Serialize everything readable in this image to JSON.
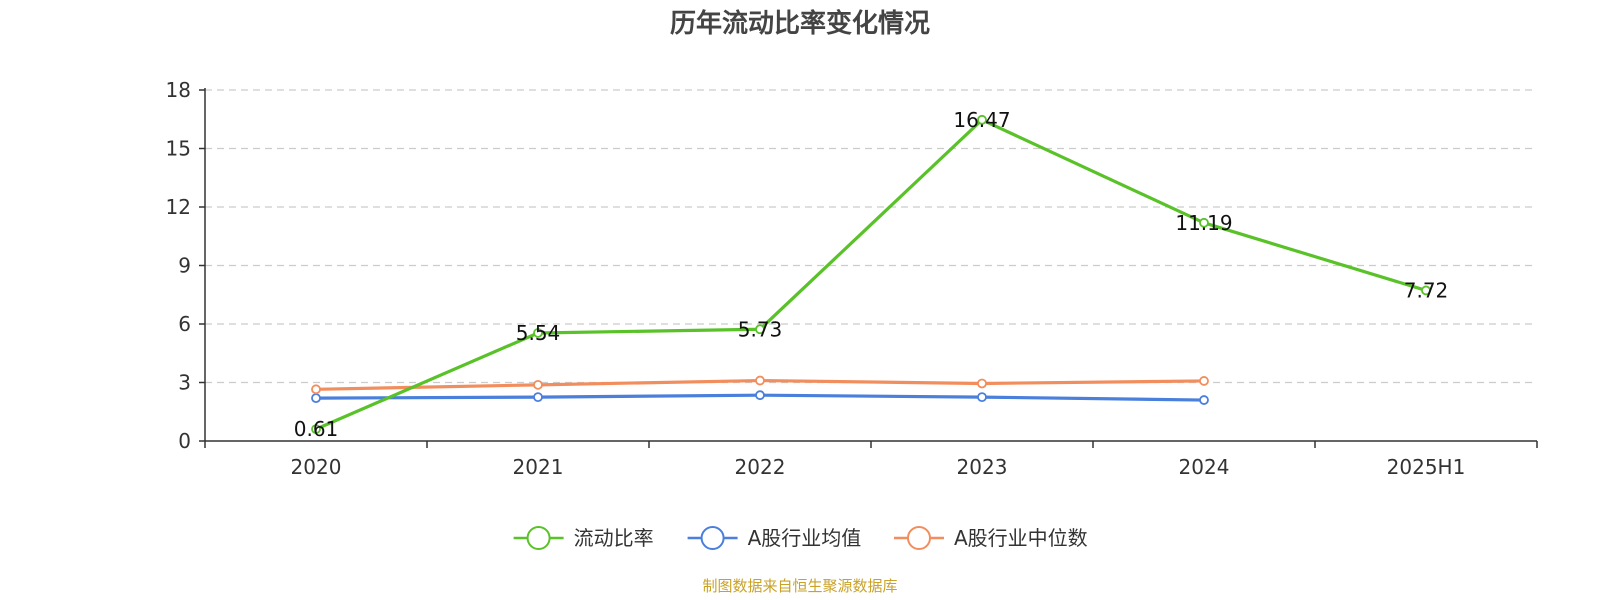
{
  "chart_data": {
    "type": "line",
    "title": "历年流动比率变化情况",
    "categories": [
      "2020",
      "2021",
      "2022",
      "2023",
      "2024",
      "2025H1"
    ],
    "ylim": [
      0,
      18
    ],
    "yticks": [
      "0",
      "3",
      "6",
      "9",
      "12",
      "15",
      "18"
    ],
    "grid": true,
    "legend_position": "bottom",
    "series": [
      {
        "name": "流动比率",
        "color": "#5ac229",
        "values": [
          0.61,
          5.54,
          5.73,
          16.47,
          11.19,
          7.72
        ],
        "labels": [
          "0.61",
          "5.54",
          "5.73",
          "16.47",
          "11.19",
          "7.72"
        ]
      },
      {
        "name": "A股行业均值",
        "color": "#4a7fdc",
        "values": [
          2.2,
          2.25,
          2.35,
          2.25,
          2.1,
          null
        ]
      },
      {
        "name": "A股行业中位数",
        "color": "#f28e5d",
        "values": [
          2.65,
          2.88,
          3.1,
          2.95,
          3.08,
          null
        ]
      }
    ]
  },
  "source": {
    "text": "制图数据来自恒生聚源数据库",
    "color": "#c9a227"
  }
}
